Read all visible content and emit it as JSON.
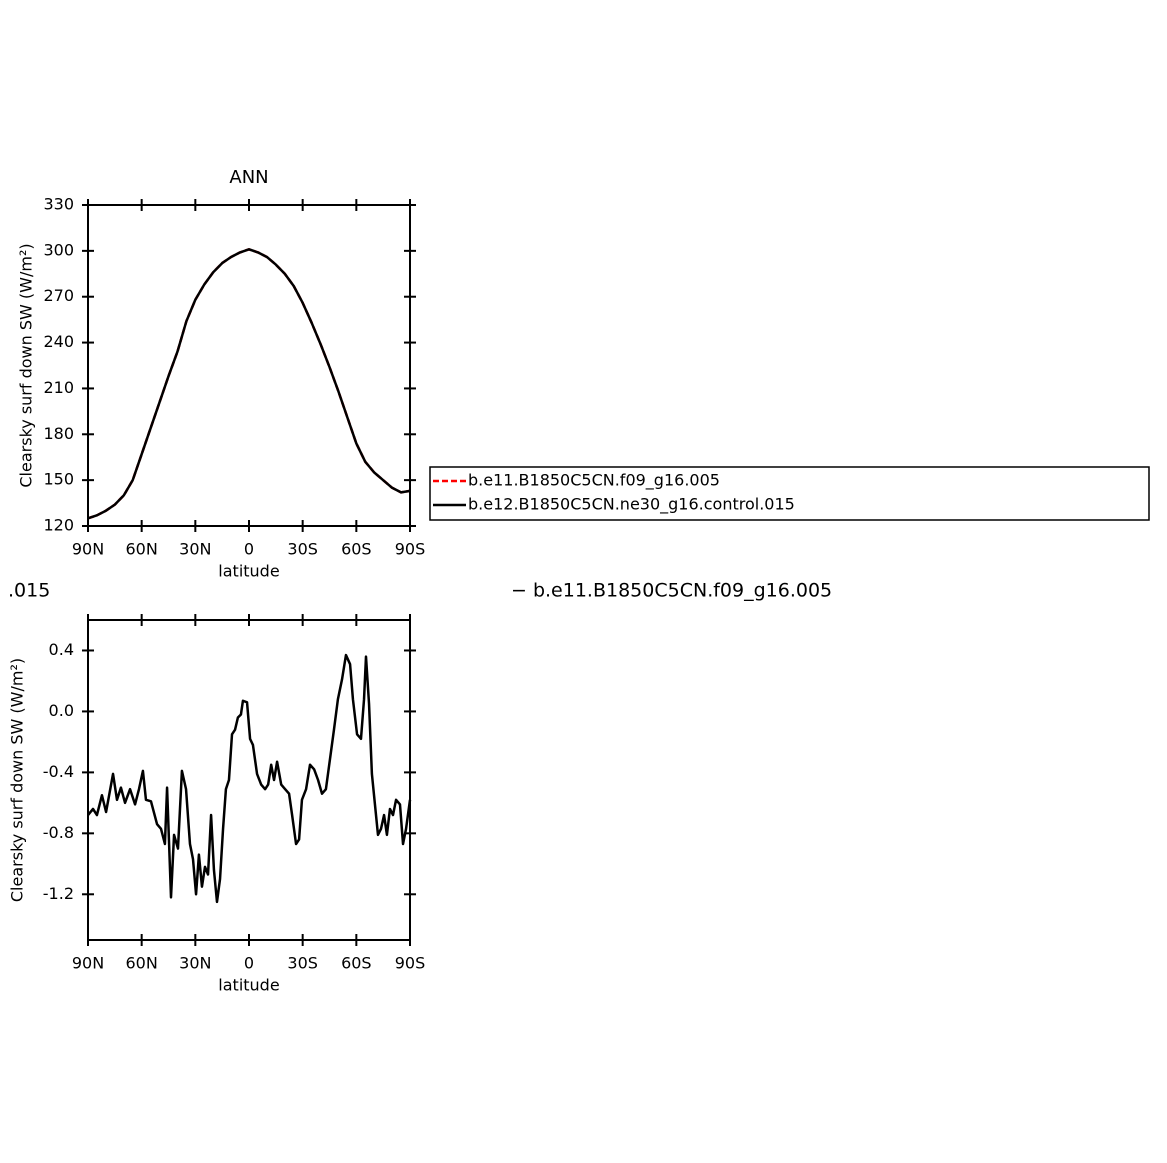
{
  "annotations": [
    ".015",
    "− b.e11.B1850C5CN.f09_g16.005"
  ],
  "chart_data": [
    {
      "type": "line",
      "title": "ANN",
      "x_label": "latitude",
      "y_label": "Clearsky surf down SW (W/m²)",
      "x": [
        90,
        85,
        80,
        75,
        70,
        65,
        60,
        55,
        50,
        45,
        40,
        35,
        30,
        25,
        20,
        15,
        10,
        5,
        0,
        -5,
        -10,
        -15,
        -20,
        -25,
        -30,
        -35,
        -40,
        -45,
        -50,
        -55,
        -60,
        -65,
        -70,
        -75,
        -80,
        -85,
        -90
      ],
      "series": [
        {
          "name": "b.e11.B1850C5CN.f09_g16.005",
          "color": "#ff0000",
          "dash": true,
          "values": [
            125,
            127,
            130,
            134,
            140,
            150,
            167,
            184,
            201,
            218,
            234,
            254,
            268,
            278,
            286,
            292,
            296,
            299,
            301,
            299,
            296,
            291,
            285,
            277,
            266,
            253,
            239,
            224,
            208,
            191,
            174,
            162,
            155,
            150,
            145,
            142,
            143
          ]
        },
        {
          "name": "b.e12.B1850C5CN.ne30_g16.control.015",
          "color": "#000000",
          "dash": false,
          "values": [
            125,
            127,
            130,
            134,
            140,
            150,
            167,
            184,
            201,
            218,
            234,
            254,
            268,
            278,
            286,
            292,
            296,
            299,
            301,
            299,
            296,
            291,
            285,
            277,
            266,
            253,
            239,
            224,
            208,
            191,
            174,
            162,
            155,
            150,
            145,
            142,
            143
          ]
        }
      ],
      "xlim": [
        90,
        -90
      ],
      "xticks": [
        {
          "value": 90,
          "label": "90N"
        },
        {
          "value": 60,
          "label": "60N"
        },
        {
          "value": 30,
          "label": "30N"
        },
        0,
        {
          "value": -30,
          "label": "30S"
        },
        {
          "value": -60,
          "label": "60S"
        },
        {
          "value": -90,
          "label": "90S"
        }
      ],
      "ylim": [
        120,
        330
      ],
      "yticks": [
        120,
        150,
        180,
        210,
        240,
        270,
        300,
        330
      ],
      "legend": "right"
    },
    {
      "type": "line",
      "x_label": "latitude",
      "y_label": "Clearsky surf down SW (W/m²)",
      "x": [
        90,
        87.2,
        85.0,
        82.2,
        79.9,
        76.0,
        73.8,
        71.6,
        69.3,
        66.5,
        63.7,
        61.5,
        59.3,
        57.6,
        54.8,
        51.4,
        49.2,
        47.0,
        45.8,
        43.6,
        41.9,
        39.7,
        37.5,
        35.2,
        33.0,
        31.3,
        29.6,
        28.0,
        26.3,
        24.6,
        22.9,
        21.2,
        19.6,
        17.9,
        16.2,
        14.5,
        12.9,
        11.2,
        9.5,
        7.8,
        6.2,
        4.5,
        3.4,
        1.1,
        -0.6,
        -2.2,
        -4.5,
        -6.8,
        -9.0,
        -10.7,
        -12.4,
        -14.0,
        -15.7,
        -18.0,
        -20.2,
        -22.4,
        -24.1,
        -26.3,
        -28.0,
        -29.6,
        -31.9,
        -34.1,
        -36.4,
        -38.6,
        -40.8,
        -43.0,
        -45.3,
        -47.5,
        -49.7,
        -52.0,
        -54.2,
        -56.5,
        -58.1,
        -60.4,
        -62.6,
        -64.3,
        -65.4,
        -67.1,
        -68.7,
        -70.4,
        -72.1,
        -73.8,
        -75.5,
        -77.1,
        -78.8,
        -80.5,
        -82.2,
        -84.4,
        -86.1,
        -87.8,
        -90
      ],
      "series": [
        {
          "color": "#000000",
          "dash": false,
          "values": [
            -0.68,
            -0.64,
            -0.68,
            -0.55,
            -0.66,
            -0.41,
            -0.58,
            -0.5,
            -0.6,
            -0.51,
            -0.61,
            -0.51,
            -0.39,
            -0.58,
            -0.59,
            -0.74,
            -0.77,
            -0.87,
            -0.5,
            -1.22,
            -0.81,
            -0.9,
            -0.39,
            -0.51,
            -0.87,
            -0.97,
            -1.2,
            -0.94,
            -1.15,
            -1.02,
            -1.07,
            -0.68,
            -1.04,
            -1.25,
            -1.1,
            -0.77,
            -0.51,
            -0.45,
            -0.15,
            -0.12,
            -0.04,
            -0.02,
            0.07,
            0.06,
            -0.18,
            -0.22,
            -0.41,
            -0.48,
            -0.51,
            -0.48,
            -0.35,
            -0.45,
            -0.33,
            -0.48,
            -0.51,
            -0.54,
            -0.68,
            -0.87,
            -0.84,
            -0.58,
            -0.51,
            -0.35,
            -0.38,
            -0.45,
            -0.54,
            -0.51,
            -0.31,
            -0.12,
            0.08,
            0.21,
            0.37,
            0.31,
            0.08,
            -0.15,
            -0.18,
            0.08,
            0.36,
            0.05,
            -0.41,
            -0.61,
            -0.81,
            -0.77,
            -0.68,
            -0.81,
            -0.64,
            -0.68,
            -0.58,
            -0.61,
            -0.87,
            -0.77,
            -0.58
          ]
        }
      ],
      "xlim": [
        90,
        -90
      ],
      "xticks": [
        {
          "value": 90,
          "label": "90N"
        },
        {
          "value": 60,
          "label": "60N"
        },
        {
          "value": 30,
          "label": "30N"
        },
        0,
        {
          "value": -30,
          "label": "30S"
        },
        {
          "value": -60,
          "label": "60S"
        },
        {
          "value": -90,
          "label": "90S"
        }
      ],
      "ylim": [
        -1.5,
        0.6
      ],
      "yticks": [
        -1.2,
        -0.8,
        -0.4,
        {
          "value": 0,
          "label": "0.0"
        },
        0.4
      ]
    }
  ]
}
